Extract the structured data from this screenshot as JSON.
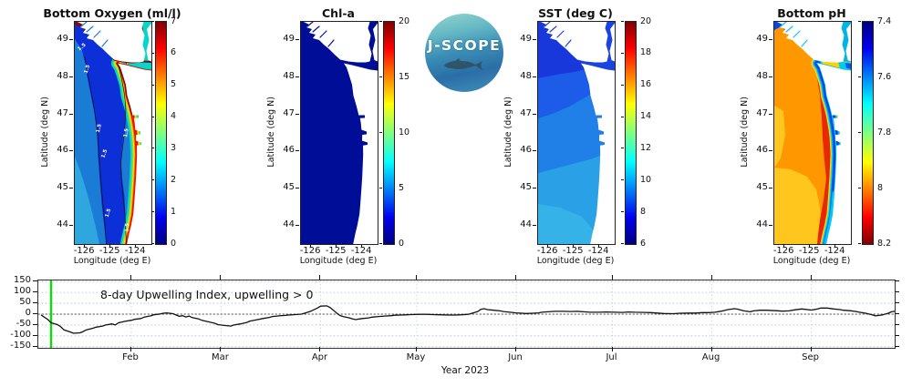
{
  "logo": {
    "text": "J-SCOPE"
  },
  "map_axes": {
    "ylabel": "Latitude (deg N)",
    "xlabel": "Longitude (deg E)",
    "lat_ticks": [
      49,
      48,
      47,
      46,
      45,
      44
    ],
    "lon_ticks": [
      -126,
      -125,
      -124
    ],
    "lat_range": [
      43.5,
      49.5
    ],
    "lon_range": [
      -126.4,
      -123.4
    ]
  },
  "panels": [
    {
      "id": "oxygen",
      "title": "Bottom Oxygen (ml/l)",
      "colorbar": {
        "min": 0,
        "max": 7,
        "ticks": [
          7,
          6,
          5,
          4,
          3,
          2,
          1,
          0
        ],
        "reversed": false
      },
      "contour_label": "1.5",
      "colors": {
        "base": "#1b7cd6",
        "southwest": "#2fa6de",
        "low_band": "#0c2fd8",
        "coast_cyan": "#00d8cc",
        "coast_green": "#7ce23c",
        "coast_yellow": "#ffe400",
        "coast_orange": "#ff8800",
        "coast_red": "#e81800",
        "coast_darkred": "#8f0000",
        "contour": "#101010"
      }
    },
    {
      "id": "chla",
      "title": "Chl-a",
      "colorbar": {
        "min": 0,
        "max": 20,
        "ticks": [
          20,
          15,
          10,
          5,
          0
        ],
        "reversed": false
      },
      "colors": {
        "base": "#000d96"
      }
    },
    {
      "id": "sst",
      "title": "SST (deg C)",
      "colorbar": {
        "min": 6,
        "max": 20,
        "ticks": [
          20,
          18,
          16,
          14,
          12,
          10,
          8,
          6
        ],
        "reversed": false
      },
      "colors": {
        "band1": "#1838dc",
        "band2": "#1c5ce8",
        "band3": "#2180e8",
        "band4": "#2aa0e6",
        "band5": "#35b2e8",
        "strait": "#1a44e0"
      }
    },
    {
      "id": "ph",
      "title": "Bottom pH",
      "colorbar": {
        "min": 7.4,
        "max": 8.2,
        "ticks": [
          8.2,
          8,
          7.8,
          7.6,
          7.4
        ],
        "reversed": true
      },
      "colors": {
        "base": "#ff9800",
        "yellow": "#ffc61e",
        "red": "#e82800",
        "coast_yellow": "#ffd800",
        "coast_green": "#4ce08c",
        "coast_cyan": "#00c8f0",
        "coast_blue": "#0068ff",
        "coast_darkblue": "#0038e0",
        "corner_blue": "#0048e8",
        "channel": "#00b4e8"
      }
    }
  ],
  "colors": {
    "land": "#ffffff",
    "frame": "#222222",
    "jet_stops": [
      "#000080",
      "#0000f0",
      "#00ffff",
      "#80ff80",
      "#ffff00",
      "#ff0000",
      "#800000"
    ],
    "jet_pos": [
      0,
      12,
      37,
      50,
      63,
      88,
      100
    ],
    "forecast_line": "#00e400",
    "series_line": "#111111",
    "grid": "#a8b4cc",
    "zero_line": "#555555"
  },
  "timeseries": {
    "annotation": "8-day Upwelling Index, upwelling > 0",
    "xlabel": "Year 2023",
    "y_ticks": [
      150,
      100,
      50,
      0,
      -50,
      -100,
      -150
    ],
    "months": [
      {
        "label": "Feb",
        "doy": 32
      },
      {
        "label": "Mar",
        "doy": 60
      },
      {
        "label": "Apr",
        "doy": 91
      },
      {
        "label": "May",
        "doy": 121
      },
      {
        "label": "Jun",
        "doy": 152
      },
      {
        "label": "Jul",
        "doy": 182
      },
      {
        "label": "Aug",
        "doy": 213
      },
      {
        "label": "Sep",
        "doy": 244
      }
    ]
  },
  "chart_data": [
    {
      "type": "heatmap",
      "title": "Bottom Oxygen (ml/l)",
      "xlabel": "Longitude (deg E)",
      "ylabel": "Latitude (deg N)",
      "x_ticks": [
        -126,
        -125,
        -124
      ],
      "y_ticks": [
        49,
        48,
        47,
        46,
        45,
        44
      ],
      "colorbar_range": [
        0,
        7
      ],
      "colorbar_ticks": [
        0,
        1,
        2,
        3,
        4,
        5,
        6,
        7
      ],
      "colormap": "jet",
      "contour_labels": "1.5",
      "summary": "Offshore ~1.5-2 ml/l blue water, hypoxic ~1 ml/l navy band along mid-shelf, 4-7 ml/l yellow-red band at the coast and Strait of Juan de Fuca shores"
    },
    {
      "type": "heatmap",
      "title": "Chl-a",
      "xlabel": "Longitude (deg E)",
      "ylabel": "Latitude (deg N)",
      "x_ticks": [
        -126,
        -125,
        -124
      ],
      "y_ticks": [
        49,
        48,
        47,
        46,
        45,
        44
      ],
      "colorbar_range": [
        0,
        20
      ],
      "colorbar_ticks": [
        0,
        5,
        10,
        15,
        20
      ],
      "colormap": "jet",
      "summary": "Near-zero chlorophyll everywhere (uniform dark blue)"
    },
    {
      "type": "heatmap",
      "title": "SST (deg C)",
      "xlabel": "Longitude (deg E)",
      "ylabel": "Latitude (deg N)",
      "x_ticks": [
        -126,
        -125,
        -124
      ],
      "y_ticks": [
        49,
        48,
        47,
        46,
        45,
        44
      ],
      "colorbar_range": [
        6,
        20
      ],
      "colorbar_ticks": [
        6,
        8,
        10,
        12,
        14,
        16,
        18,
        20
      ],
      "colormap": "jet",
      "summary": "SST ~7-8 C (dark blue) in north grading to ~10-11 C (light blue) in south"
    },
    {
      "type": "heatmap",
      "title": "Bottom pH",
      "xlabel": "Longitude (deg E)",
      "ylabel": "Latitude (deg N)",
      "x_ticks": [
        -126,
        -125,
        -124
      ],
      "y_ticks": [
        49,
        48,
        47,
        46,
        45,
        44
      ],
      "colorbar_range": [
        7.4,
        8.2
      ],
      "colorbar_ticks": [
        7.4,
        7.6,
        7.8,
        8,
        8.2
      ],
      "colormap": "jet reversed",
      "summary": "Offshore pH ~7.5-7.65 (orange/red with yellow SW), higher pH ~8.0-8.1 blue band hugging the coast"
    },
    {
      "type": "line",
      "title": "8-day Upwelling Index, upwelling > 0",
      "xlabel": "Year 2023",
      "x_unit": "day of year 2023",
      "x_range": [
        3,
        270
      ],
      "ylim": [
        -155,
        155
      ],
      "y_ticks": [
        150,
        100,
        50,
        0,
        -50,
        -100,
        -150
      ],
      "month_tick_doys": [
        32,
        60,
        91,
        121,
        152,
        182,
        213,
        244
      ],
      "month_tick_labels": [
        "Feb",
        "Mar",
        "Apr",
        "May",
        "Jun",
        "Jul",
        "Aug",
        "Sep"
      ],
      "forecast_start_marker_doy": 7,
      "zero_reference_line": true,
      "x_doy": [
        4,
        6,
        7,
        9,
        10,
        11,
        13,
        14,
        16,
        17,
        18,
        20,
        21,
        23,
        24,
        26,
        27,
        28,
        30,
        32,
        33,
        35,
        36,
        38,
        39,
        41,
        42,
        43,
        45,
        46,
        47,
        48,
        49,
        50,
        51,
        53,
        54,
        56,
        58,
        59,
        61,
        63,
        64,
        66,
        68,
        69,
        71,
        73,
        75,
        76,
        78,
        80,
        81,
        83,
        85,
        86,
        88,
        90,
        91,
        93,
        94,
        95,
        96,
        97,
        98,
        100,
        101,
        102,
        103,
        104,
        106,
        107,
        109,
        111,
        113,
        114,
        116,
        118,
        119,
        122,
        124,
        126,
        128,
        131,
        133,
        135,
        137,
        138,
        140,
        141,
        142,
        143,
        145,
        147,
        148,
        150,
        152,
        154,
        155,
        157,
        159,
        160,
        162,
        164,
        167,
        169,
        171,
        173,
        175,
        178,
        180,
        183,
        185,
        187,
        189,
        192,
        194,
        196,
        198,
        201,
        203,
        206,
        208,
        210,
        212,
        214,
        216,
        218,
        220,
        221,
        223,
        225,
        226,
        228,
        230,
        233,
        235,
        237,
        239,
        241,
        242,
        244,
        246,
        247,
        249,
        251,
        253,
        254,
        256,
        258,
        259,
        261,
        263,
        264,
        266,
        268,
        269,
        270
      ],
      "values": [
        -5,
        -25,
        -40,
        -48,
        -58,
        -72,
        -82,
        -88,
        -86,
        -80,
        -72,
        -65,
        -60,
        -55,
        -50,
        -45,
        -50,
        -40,
        -33,
        -28,
        -24,
        -20,
        -14,
        -8,
        -3,
        1,
        4,
        6,
        2,
        -4,
        -10,
        -7,
        -13,
        -9,
        -16,
        -22,
        -28,
        -35,
        -42,
        -48,
        -52,
        -55,
        -50,
        -45,
        -38,
        -32,
        -26,
        -20,
        -15,
        -11,
        -8,
        -6,
        -4,
        -2,
        0,
        4,
        14,
        28,
        37,
        38,
        30,
        18,
        5,
        -6,
        -11,
        -17,
        -22,
        -25,
        -22,
        -20,
        -17,
        -14,
        -11,
        -9,
        -7,
        -5,
        -4,
        -3,
        -2,
        -1,
        -1,
        -2,
        -3,
        -4,
        -4,
        -3,
        -1,
        3,
        12,
        22,
        25,
        21,
        18,
        15,
        12,
        9,
        6,
        4,
        3,
        4,
        6,
        9,
        11,
        13,
        13,
        12,
        13,
        11,
        9,
        9,
        10,
        9,
        8,
        10,
        9,
        8,
        7,
        5,
        3,
        2,
        4,
        5,
        5,
        7,
        7,
        9,
        14,
        21,
        25,
        23,
        15,
        11,
        15,
        18,
        18,
        16,
        14,
        15,
        20,
        24,
        22,
        19,
        24,
        28,
        28,
        24,
        21,
        18,
        16,
        12,
        9,
        4,
        -3,
        -8,
        -4,
        4,
        11,
        13
      ]
    }
  ]
}
